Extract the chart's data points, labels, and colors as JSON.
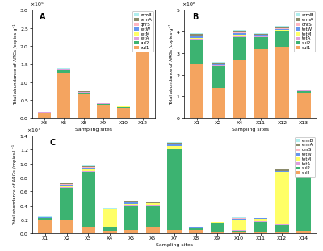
{
  "panel_A": {
    "sites": [
      "X3",
      "X6",
      "X8",
      "X9",
      "X10",
      "X12"
    ],
    "sul1": [
      13000,
      125000,
      65000,
      36000,
      28000,
      225000
    ],
    "sul2": [
      1500,
      8000,
      5000,
      3000,
      4000,
      12000
    ],
    "tetA": [
      500,
      1500,
      1200,
      800,
      800,
      2500
    ],
    "tetM": [
      200,
      500,
      400,
      250,
      250,
      800
    ],
    "tetW": [
      400,
      1200,
      900,
      500,
      500,
      2000
    ],
    "qnrS": [
      200,
      600,
      400,
      250,
      250,
      1000
    ],
    "ermA": [
      400,
      1500,
      1000,
      500,
      500,
      2500
    ],
    "ermB": [
      200,
      500,
      400,
      200,
      200,
      1000
    ],
    "ylim": [
      0,
      300000.0
    ],
    "ylabel": "Total abundance of ARGs /copies·g⁻¹",
    "xlabel": "Sampling sites",
    "label": "A"
  },
  "panel_B": {
    "sites": [
      "X1",
      "X2",
      "X4",
      "X11",
      "X12",
      "X13"
    ],
    "sul1": [
      250000000.0,
      140000000.0,
      270000000.0,
      320000000.0,
      330000000.0,
      115000000.0
    ],
    "sul2": [
      110000000.0,
      100000000.0,
      105000000.0,
      55000000.0,
      70000000.0,
      10000000.0
    ],
    "tetA": [
      8000000.0,
      4000000.0,
      8000000.0,
      4000000.0,
      5000000.0,
      1500000.0
    ],
    "tetM": [
      3000000.0,
      1500000.0,
      3000000.0,
      1500000.0,
      2000000.0,
      500000.0
    ],
    "tetW": [
      8000000.0,
      4000000.0,
      8000000.0,
      4000000.0,
      5000000.0,
      1500000.0
    ],
    "qnrS": [
      4000000.0,
      2000000.0,
      4000000.0,
      2000000.0,
      4000000.0,
      800000.0
    ],
    "ermA": [
      8000000.0,
      4000000.0,
      8000000.0,
      4000000.0,
      5000000.0,
      1500000.0
    ],
    "ermB": [
      4000000.0,
      1500000.0,
      4000000.0,
      1500000.0,
      4000000.0,
      800000.0
    ],
    "ylim": [
      0,
      500000000.0
    ],
    "ylabel": "Total abundance of ARGs /copies·g⁻¹",
    "xlabel": "Sampling sites",
    "label": "B"
  },
  "panel_C": {
    "sites": [
      "X1",
      "X2",
      "X3",
      "X4",
      "X5",
      "X6",
      "X7",
      "X8",
      "X9",
      "X10",
      "X11",
      "X12",
      "X14"
    ],
    "sul1": [
      2000000.0,
      2000000.0,
      1000000.0,
      400000.0,
      500000.0,
      1000000.0,
      500000.0,
      500000.0,
      300000.0,
      200000.0,
      200000.0,
      200000.0,
      400000.0
    ],
    "sul2": [
      200000.0,
      4500000.0,
      7800000.0,
      500000.0,
      3500000.0,
      3000000.0,
      11500000.0,
      300000.0,
      1200000.0,
      200000.0,
      1500000.0,
      1000000.0,
      8500000.0
    ],
    "tetA": [
      50000.0,
      80000.0,
      150000.0,
      40000.0,
      80000.0,
      80000.0,
      150000.0,
      40000.0,
      40000.0,
      80000.0,
      40000.0,
      80000.0,
      150000.0
    ],
    "tetM": [
      20000.0,
      200000.0,
      200000.0,
      2500000.0,
      150000.0,
      200000.0,
      300000.0,
      50000.0,
      50000.0,
      1500000.0,
      400000.0,
      7500000.0,
      200000.0
    ],
    "tetW": [
      50000.0,
      200000.0,
      250000.0,
      40000.0,
      250000.0,
      100000.0,
      250000.0,
      40000.0,
      40000.0,
      150000.0,
      40000.0,
      150000.0,
      250000.0
    ],
    "qnrS": [
      20000.0,
      80000.0,
      80000.0,
      15000.0,
      80000.0,
      40000.0,
      80000.0,
      15000.0,
      15000.0,
      40000.0,
      15000.0,
      40000.0,
      80000.0
    ],
    "ermA": [
      40000.0,
      120000.0,
      180000.0,
      40000.0,
      100000.0,
      100000.0,
      180000.0,
      40000.0,
      40000.0,
      100000.0,
      40000.0,
      150000.0,
      180000.0
    ],
    "ermB": [
      20000.0,
      40000.0,
      80000.0,
      15000.0,
      40000.0,
      40000.0,
      80000.0,
      15000.0,
      15000.0,
      40000.0,
      15000.0,
      80000.0,
      80000.0
    ],
    "ylim": [
      0,
      14000000.0
    ],
    "ylabel": "Total abundance of ARGs /copies·L⁻¹",
    "xlabel": "Sampling sites",
    "label": "C"
  },
  "colors": {
    "sul1": "#F4A460",
    "sul2": "#3CB371",
    "tetA": "#DDA0DD",
    "tetM": "#FFFF66",
    "tetW": "#6495ED",
    "qnrS": "#FFB6C1",
    "ermA": "#8B8B6B",
    "ermB": "#AFEEEE"
  },
  "gene_order": [
    "sul1",
    "sul2",
    "tetA",
    "tetM",
    "tetW",
    "qnrS",
    "ermA",
    "ermB"
  ]
}
